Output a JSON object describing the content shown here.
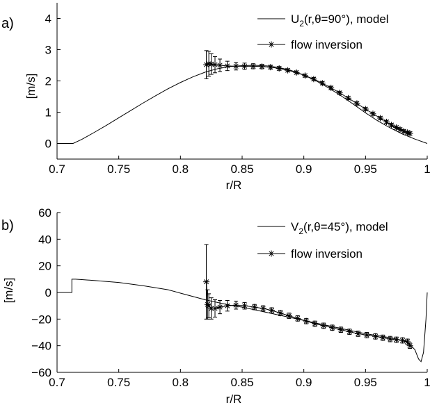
{
  "chart_data": [
    {
      "type": "line",
      "panel_label": "a)",
      "xlabel": "r/R",
      "ylabel": "[m/s]",
      "xlim": [
        0.7,
        1.0
      ],
      "ylim": [
        -0.5,
        4.5
      ],
      "xticks": [
        0.7,
        0.75,
        0.8,
        0.85,
        0.9,
        0.95,
        1.0
      ],
      "xtick_labels": [
        "0.7",
        "0.75",
        "0.8",
        "0.85",
        "0.9",
        "0.95",
        "1"
      ],
      "yticks": [
        0,
        1,
        2,
        3,
        4
      ],
      "ytick_labels": [
        "0",
        "1",
        "2",
        "3",
        "4"
      ],
      "grid": false,
      "legend_position": "top-right",
      "series": [
        {
          "name": "U2(r,θ=90°), model",
          "legend_main": "U",
          "legend_sub": "2",
          "legend_rest": "(r,θ=90°), model",
          "style": "line",
          "x": [
            0.7,
            0.713,
            0.72,
            0.73,
            0.74,
            0.75,
            0.76,
            0.77,
            0.78,
            0.79,
            0.8,
            0.81,
            0.82,
            0.83,
            0.84,
            0.85,
            0.86,
            0.87,
            0.88,
            0.89,
            0.9,
            0.91,
            0.92,
            0.93,
            0.94,
            0.95,
            0.96,
            0.97,
            0.98,
            0.99,
            1.0
          ],
          "y": [
            0,
            0,
            0.13,
            0.35,
            0.58,
            0.82,
            1.06,
            1.3,
            1.53,
            1.75,
            1.95,
            2.13,
            2.28,
            2.39,
            2.46,
            2.49,
            2.5,
            2.48,
            2.43,
            2.33,
            2.19,
            2.0,
            1.78,
            1.53,
            1.26,
            0.98,
            0.72,
            0.5,
            0.3,
            0.14,
            0
          ]
        },
        {
          "name": "flow inversion",
          "style": "line-star-errorbar",
          "x": [
            0.821,
            0.823,
            0.825,
            0.828,
            0.832,
            0.838,
            0.845,
            0.852,
            0.859,
            0.866,
            0.873,
            0.88,
            0.887,
            0.894,
            0.901,
            0.908,
            0.915,
            0.922,
            0.929,
            0.936,
            0.943,
            0.95,
            0.956,
            0.962,
            0.967,
            0.971,
            0.975,
            0.978,
            0.981,
            0.984,
            0.986
          ],
          "y": [
            2.52,
            2.55,
            2.54,
            2.52,
            2.5,
            2.48,
            2.47,
            2.47,
            2.47,
            2.46,
            2.44,
            2.4,
            2.34,
            2.27,
            2.17,
            2.06,
            1.93,
            1.78,
            1.62,
            1.45,
            1.28,
            1.1,
            0.95,
            0.81,
            0.69,
            0.59,
            0.51,
            0.45,
            0.39,
            0.35,
            0.32
          ],
          "err": [
            0.45,
            0.4,
            0.33,
            0.26,
            0.2,
            0.15,
            0.12,
            0.1,
            0.08,
            0.07,
            0.06,
            0.06,
            0.05,
            0.05,
            0.05,
            0.05,
            0.05,
            0.05,
            0.05,
            0.05,
            0.05,
            0.05,
            0.05,
            0.05,
            0.05,
            0.05,
            0.05,
            0.05,
            0.05,
            0.05,
            0.05
          ]
        }
      ]
    },
    {
      "type": "line",
      "panel_label": "b)",
      "xlabel": "r/R",
      "ylabel": "[m/s]",
      "xlim": [
        0.7,
        1.0
      ],
      "ylim": [
        -60,
        60
      ],
      "xticks": [
        0.7,
        0.75,
        0.8,
        0.85,
        0.9,
        0.95,
        1.0
      ],
      "xtick_labels": [
        "0.7",
        "0.75",
        "0.8",
        "0.85",
        "0.9",
        "0.95",
        "1"
      ],
      "yticks": [
        -60,
        -40,
        -20,
        0,
        20,
        40,
        60
      ],
      "ytick_labels": [
        "−60",
        "−40",
        "−20",
        "0",
        "20",
        "40",
        "60"
      ],
      "grid": false,
      "legend_position": "top-right",
      "series": [
        {
          "name": "V2(r,θ=45°), model",
          "legend_main": "V",
          "legend_sub": "2",
          "legend_rest": "(r,θ=45°), model",
          "style": "line",
          "x": [
            0.7,
            0.712,
            0.712,
            0.715,
            0.73,
            0.75,
            0.77,
            0.79,
            0.8,
            0.81,
            0.82,
            0.83,
            0.84,
            0.85,
            0.86,
            0.87,
            0.88,
            0.89,
            0.9,
            0.91,
            0.92,
            0.93,
            0.94,
            0.95,
            0.96,
            0.97,
            0.98,
            0.985,
            0.99,
            0.993,
            0.995,
            0.997,
            0.999,
            1.0
          ],
          "y": [
            0,
            0,
            10,
            10,
            9,
            7.5,
            5,
            2,
            -0.5,
            -3,
            -5.5,
            -7.5,
            -9.5,
            -11,
            -13,
            -15,
            -17,
            -19,
            -21,
            -23,
            -25,
            -27,
            -29,
            -31,
            -32.5,
            -34,
            -36,
            -38,
            -43,
            -50,
            -52,
            -45,
            -20,
            0
          ]
        },
        {
          "name": "flow inversion",
          "style": "line-star-errorbar",
          "x": [
            0.821,
            0.822,
            0.823,
            0.825,
            0.828,
            0.832,
            0.838,
            0.845,
            0.852,
            0.86,
            0.867,
            0.874,
            0.881,
            0.888,
            0.895,
            0.902,
            0.909,
            0.916,
            0.923,
            0.93,
            0.937,
            0.944,
            0.951,
            0.958,
            0.964,
            0.97,
            0.975,
            0.98,
            0.984,
            0.986
          ],
          "y": [
            8,
            -9,
            -10,
            -12,
            -12,
            -11,
            -10,
            -9.5,
            -10,
            -11,
            -12,
            -13.5,
            -15.5,
            -17.5,
            -19.5,
            -21.5,
            -23.5,
            -25,
            -26.5,
            -28,
            -29.5,
            -31,
            -32,
            -33,
            -34,
            -35,
            -35.5,
            -36,
            -37,
            -40
          ],
          "err": [
            28,
            11,
            9,
            8,
            6.5,
            5,
            4,
            3,
            2.5,
            2,
            2,
            2,
            2,
            2,
            2,
            2,
            2,
            2,
            2,
            2,
            2,
            2,
            2,
            2,
            2,
            2,
            2,
            2,
            2,
            2
          ]
        }
      ]
    }
  ]
}
